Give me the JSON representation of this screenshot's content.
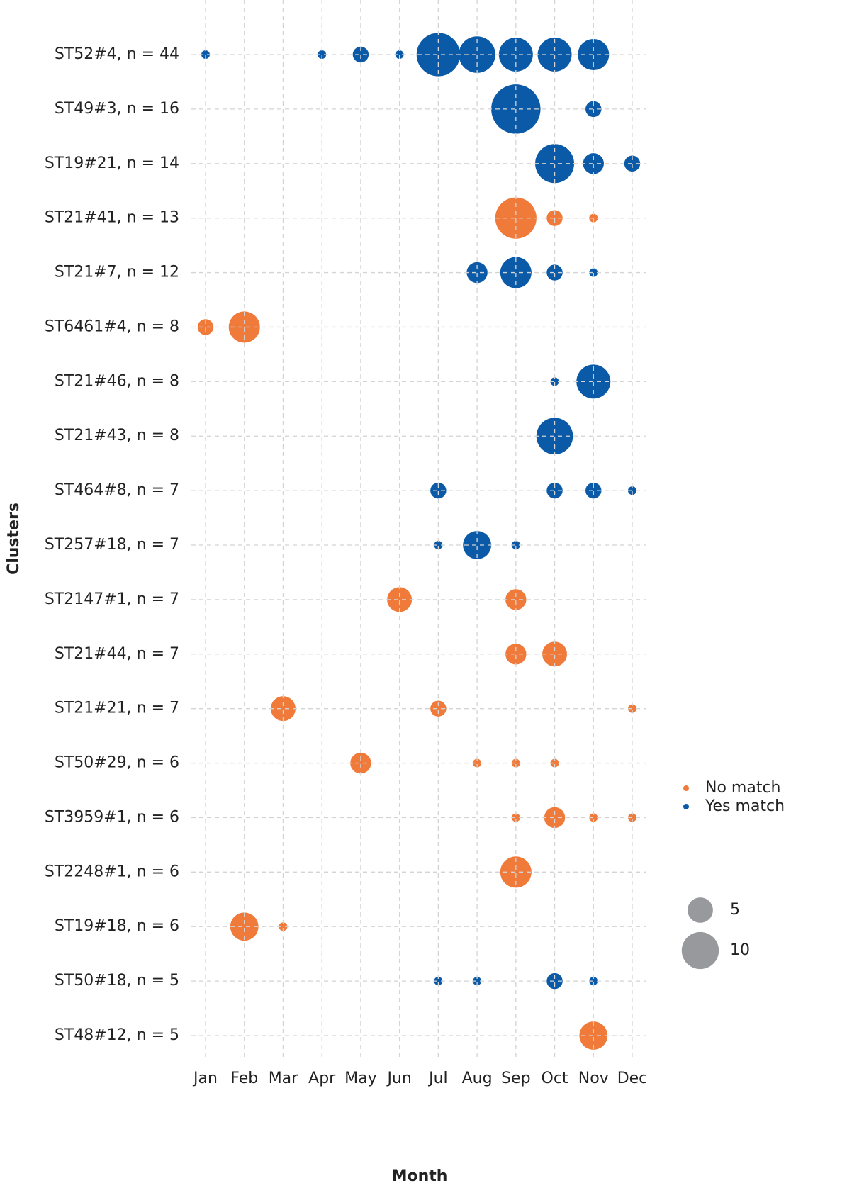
{
  "chart_data": {
    "type": "bubble",
    "x_label": "Month",
    "y_label": "Clusters",
    "categories": [
      "Jan",
      "Feb",
      "Mar",
      "Apr",
      "May",
      "Jun",
      "Jul",
      "Aug",
      "Sep",
      "Oct",
      "Nov",
      "Dec"
    ],
    "y_categories": [
      "ST52#4, n = 44",
      "ST49#3, n = 16",
      "ST19#21, n = 14",
      "ST21#41, n = 13",
      "ST21#7, n = 12",
      "ST6461#4, n = 8",
      "ST21#46, n = 8",
      "ST21#43, n = 8",
      "ST464#8, n = 7",
      "ST257#18, n = 7",
      "ST2147#1, n = 7",
      "ST21#44, n = 7",
      "ST21#21, n = 7",
      "ST50#29, n = 6",
      "ST3959#1, n = 6",
      "ST2248#1, n = 6",
      "ST19#18, n = 6",
      "ST50#18, n = 5",
      "ST48#12, n = 5"
    ],
    "grid": true,
    "size_legend": {
      "values": [
        5,
        10
      ],
      "color": "#98999c"
    },
    "series": [
      {
        "name": "No match",
        "color": "#f07a3a",
        "x": [
          "Sep",
          "Oct",
          "Nov",
          "Jan",
          "Feb",
          "Jun",
          "Sep",
          "Sep",
          "Oct",
          "Mar",
          "Jul",
          "Dec",
          "May",
          "Aug",
          "Sep",
          "Oct",
          "Sep",
          "Oct",
          "Nov",
          "Dec",
          "Sep",
          "Feb",
          "Mar",
          "Nov"
        ],
        "y": [
          "ST21#41, n = 13",
          "ST21#41, n = 13",
          "ST21#41, n = 13",
          "ST6461#4, n = 8",
          "ST6461#4, n = 8",
          "ST2147#1, n = 7",
          "ST2147#1, n = 7",
          "ST21#44, n = 7",
          "ST21#44, n = 7",
          "ST21#21, n = 7",
          "ST21#21, n = 7",
          "ST21#21, n = 7",
          "ST50#29, n = 6",
          "ST50#29, n = 6",
          "ST50#29, n = 6",
          "ST50#29, n = 6",
          "ST3959#1, n = 6",
          "ST3959#1, n = 6",
          "ST3959#1, n = 6",
          "ST3959#1, n = 6",
          "ST2248#1, n = 6",
          "ST19#18, n = 6",
          "ST19#18, n = 6",
          "ST48#12, n = 5"
        ],
        "values": [
          10,
          2,
          1,
          2,
          6,
          4,
          3,
          3,
          4,
          4,
          2,
          1,
          3,
          1,
          1,
          1,
          1,
          3,
          1,
          1,
          6,
          5,
          1,
          5
        ]
      },
      {
        "name": "Yes match",
        "color": "#0b5aa8",
        "x": [
          "Jan",
          "Apr",
          "May",
          "Jun",
          "Jul",
          "Aug",
          "Sep",
          "Oct",
          "Nov",
          "Sep",
          "Nov",
          "Oct",
          "Nov",
          "Dec",
          "Aug",
          "Sep",
          "Oct",
          "Nov",
          "Oct",
          "Nov",
          "Oct",
          "Jul",
          "Oct",
          "Nov",
          "Dec",
          "Jul",
          "Aug",
          "Sep",
          "Jul",
          "Aug",
          "Oct",
          "Nov"
        ],
        "y": [
          "ST52#4, n = 44",
          "ST52#4, n = 44",
          "ST52#4, n = 44",
          "ST52#4, n = 44",
          "ST52#4, n = 44",
          "ST52#4, n = 44",
          "ST52#4, n = 44",
          "ST52#4, n = 44",
          "ST52#4, n = 44",
          "ST49#3, n = 16",
          "ST49#3, n = 16",
          "ST19#21, n = 14",
          "ST19#21, n = 14",
          "ST19#21, n = 14",
          "ST21#7, n = 12",
          "ST21#7, n = 12",
          "ST21#7, n = 12",
          "ST21#7, n = 12",
          "ST21#46, n = 8",
          "ST21#46, n = 8",
          "ST21#43, n = 8",
          "ST464#8, n = 7",
          "ST464#8, n = 7",
          "ST464#8, n = 7",
          "ST464#8, n = 7",
          "ST257#18, n = 7",
          "ST257#18, n = 7",
          "ST257#18, n = 7",
          "ST50#18, n = 5",
          "ST50#18, n = 5",
          "ST50#18, n = 5",
          "ST50#18, n = 5"
        ],
        "values": [
          1,
          1,
          2,
          1,
          11,
          8,
          7,
          7,
          6,
          14,
          2,
          9,
          3,
          2,
          3,
          6,
          2,
          1,
          1,
          7,
          8,
          2,
          2,
          2,
          1,
          1,
          5,
          1,
          1,
          1,
          2,
          1
        ]
      }
    ]
  }
}
